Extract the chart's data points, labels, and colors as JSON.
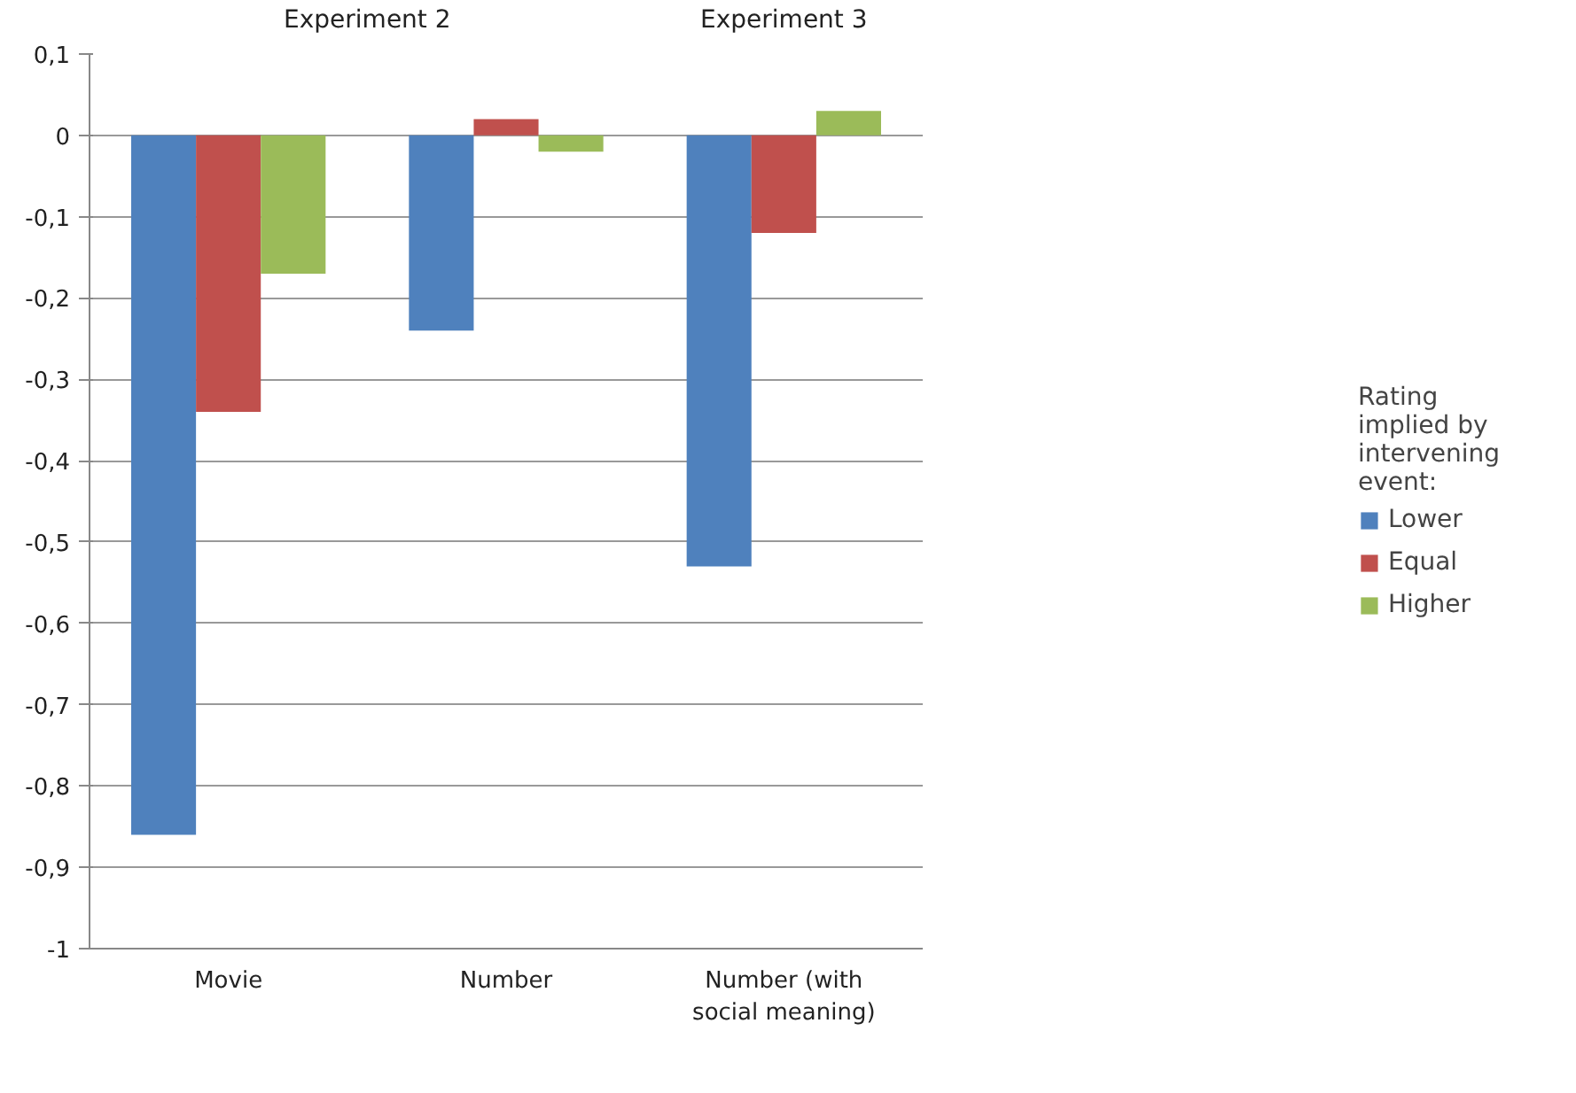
{
  "chart_data": {
    "type": "bar",
    "categories": [
      "Movie",
      "Number",
      "Number (with social meaning)"
    ],
    "series": [
      {
        "name": "Lower",
        "color": "#4f81bd",
        "values": [
          -0.86,
          -0.24,
          -0.53
        ]
      },
      {
        "name": "Equal",
        "color": "#c0504d",
        "values": [
          -0.34,
          0.02,
          -0.12
        ]
      },
      {
        "name": "Higher",
        "color": "#9bbb59",
        "values": [
          -0.17,
          -0.02,
          0.03
        ]
      }
    ],
    "annotations": [
      "Experiment 2",
      "Experiment 3"
    ],
    "legend_title": "Rating implied by intervening event:",
    "legend": "right",
    "ylim": [
      -1,
      0.1
    ],
    "yticks": [
      {
        "value": -1,
        "label": "-1"
      },
      {
        "value": -0.9,
        "label": "-0,9"
      },
      {
        "value": -0.8,
        "label": "-0,8"
      },
      {
        "value": -0.7,
        "label": "-0,7"
      },
      {
        "value": -0.6,
        "label": "-0,6"
      },
      {
        "value": -0.5,
        "label": "-0,5"
      },
      {
        "value": -0.4,
        "label": "-0,4"
      },
      {
        "value": -0.3,
        "label": "-0,3"
      },
      {
        "value": -0.2,
        "label": "-0,2"
      },
      {
        "value": -0.1,
        "label": "-0,1"
      },
      {
        "value": 0,
        "label": "0"
      },
      {
        "value": 0.1,
        "label": "0,1"
      }
    ],
    "grid": "y"
  }
}
